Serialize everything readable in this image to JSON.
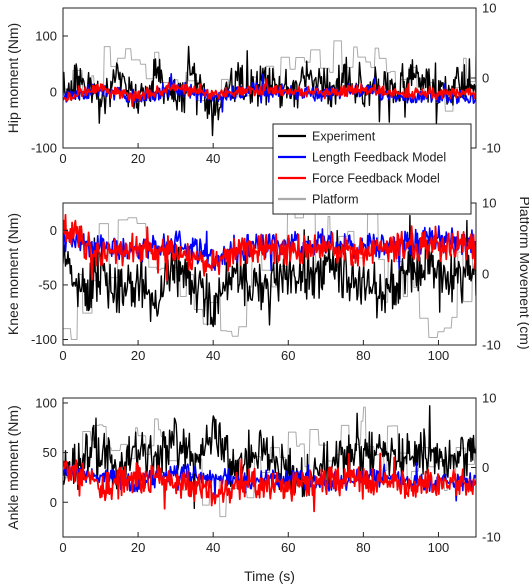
{
  "chart_data": {
    "type": "line",
    "x_label": "Time (s)",
    "x_ticks": [
      0,
      20,
      40,
      60,
      80,
      100
    ],
    "x_range": [
      0,
      110
    ],
    "right_axis_label": "Platform Movement (cm)",
    "right_axis_ticks": [
      -10,
      0,
      10
    ],
    "right_axis_range": [
      -10,
      10
    ],
    "legend": {
      "position": "inside top-panel lower-right",
      "entries": [
        {
          "name": "Experiment",
          "color": "#000000"
        },
        {
          "name": "Length Feedback Model",
          "color": "#0000ff"
        },
        {
          "name": "Force Feedback Model",
          "color": "#ff0000"
        },
        {
          "name": "Platform",
          "color": "#aaaaaa"
        }
      ]
    },
    "panels": [
      {
        "ylabel": "Hip moment (Nm)",
        "y_ticks": [
          -100,
          0,
          100
        ],
        "y_range": [
          -100,
          150
        ],
        "series": [
          {
            "name": "Experiment",
            "mean": 5,
            "spread": 38,
            "x": [
              0,
              5,
              10,
              15,
              20,
              25,
              30,
              35,
              40,
              45,
              50,
              55,
              60,
              65,
              70,
              75,
              80,
              85,
              90,
              95,
              100,
              105,
              110
            ],
            "values": [
              0,
              20,
              -15,
              35,
              -20,
              40,
              -25,
              30,
              -45,
              20,
              10,
              15,
              5,
              25,
              10,
              15,
              15,
              10,
              20,
              25,
              -5,
              15,
              10
            ]
          },
          {
            "name": "Length Feedback Model",
            "mean": -3,
            "spread": 14,
            "x": [
              0,
              10,
              20,
              30,
              40,
              50,
              60,
              70,
              80,
              90,
              100,
              110
            ],
            "values": [
              -5,
              5,
              -10,
              8,
              -12,
              6,
              0,
              -5,
              3,
              -8,
              -5,
              -10
            ]
          },
          {
            "name": "Force Feedback Model",
            "mean": 0,
            "spread": 10,
            "x": [
              0,
              10,
              20,
              30,
              40,
              50,
              60,
              70,
              80,
              90,
              100,
              110
            ],
            "values": [
              -10,
              5,
              -8,
              10,
              -5,
              6,
              2,
              -2,
              5,
              -3,
              -2,
              -2
            ]
          },
          {
            "name": "Platform",
            "mean": 0,
            "spread": 3,
            "x": [
              0,
              20,
              40,
              60,
              80,
              100,
              110
            ],
            "values": [
              0,
              3,
              -3,
              2,
              3,
              -3,
              2
            ]
          }
        ]
      },
      {
        "ylabel": "Knee moment (Nm)",
        "y_ticks": [
          -100,
          -50,
          0
        ],
        "y_range": [
          -105,
          25
        ],
        "series": [
          {
            "name": "Experiment",
            "mean": -45,
            "spread": 25,
            "x": [
              0,
              5,
              10,
              15,
              20,
              25,
              30,
              35,
              40,
              45,
              50,
              55,
              60,
              65,
              70,
              75,
              80,
              85,
              90,
              95,
              100,
              105,
              110
            ],
            "values": [
              -20,
              -55,
              -40,
              -60,
              -45,
              -65,
              -35,
              -50,
              -70,
              -40,
              -55,
              -45,
              -35,
              -50,
              -30,
              -40,
              -45,
              -60,
              -40,
              -30,
              -35,
              -45,
              -35
            ]
          },
          {
            "name": "Length Feedback Model",
            "mean": -15,
            "spread": 12,
            "x": [
              0,
              10,
              20,
              30,
              40,
              50,
              60,
              70,
              80,
              90,
              100,
              110
            ],
            "values": [
              -10,
              -15,
              -20,
              -10,
              -25,
              -15,
              -12,
              -10,
              -15,
              -12,
              -8,
              -12
            ]
          },
          {
            "name": "Force Feedback Model",
            "mean": -18,
            "spread": 14,
            "x": [
              0,
              10,
              20,
              30,
              40,
              50,
              60,
              70,
              80,
              90,
              100,
              110
            ],
            "values": [
              5,
              -25,
              -15,
              -20,
              -30,
              -15,
              -18,
              -15,
              -20,
              -15,
              -15,
              -15
            ]
          },
          {
            "name": "Platform",
            "mean": 0,
            "spread": 6,
            "x": [
              0,
              20,
              40,
              60,
              80,
              100,
              110
            ],
            "values": [
              -5,
              8,
              -8,
              6,
              5,
              -6,
              4
            ]
          }
        ]
      },
      {
        "ylabel": "Ankle moment (Nm)",
        "y_ticks": [
          0,
          50,
          100
        ],
        "y_range": [
          -35,
          105
        ],
        "series": [
          {
            "name": "Experiment",
            "mean": 40,
            "spread": 25,
            "x": [
              0,
              5,
              10,
              15,
              20,
              25,
              30,
              35,
              40,
              45,
              50,
              55,
              60,
              65,
              70,
              75,
              80,
              85,
              90,
              95,
              100,
              105,
              110
            ],
            "values": [
              30,
              40,
              60,
              35,
              55,
              45,
              60,
              40,
              65,
              35,
              50,
              45,
              30,
              25,
              40,
              45,
              50,
              55,
              45,
              50,
              45,
              40,
              50
            ]
          },
          {
            "name": "Length Feedback Model",
            "mean": 25,
            "spread": 10,
            "x": [
              0,
              10,
              20,
              30,
              40,
              50,
              60,
              70,
              80,
              90,
              100,
              110
            ],
            "values": [
              30,
              25,
              20,
              30,
              25,
              22,
              25,
              20,
              24,
              22,
              20,
              20
            ]
          },
          {
            "name": "Force Feedback Model",
            "mean": 20,
            "spread": 15,
            "x": [
              0,
              10,
              20,
              30,
              40,
              50,
              60,
              70,
              80,
              90,
              100,
              110
            ],
            "values": [
              40,
              15,
              25,
              20,
              10,
              20,
              15,
              20,
              22,
              18,
              20,
              20
            ]
          },
          {
            "name": "Platform",
            "mean": 0,
            "spread": 4,
            "x": [
              0,
              20,
              40,
              60,
              80,
              100,
              110
            ],
            "values": [
              0,
              5,
              -4,
              3,
              6,
              -3,
              2
            ]
          }
        ]
      }
    ]
  }
}
